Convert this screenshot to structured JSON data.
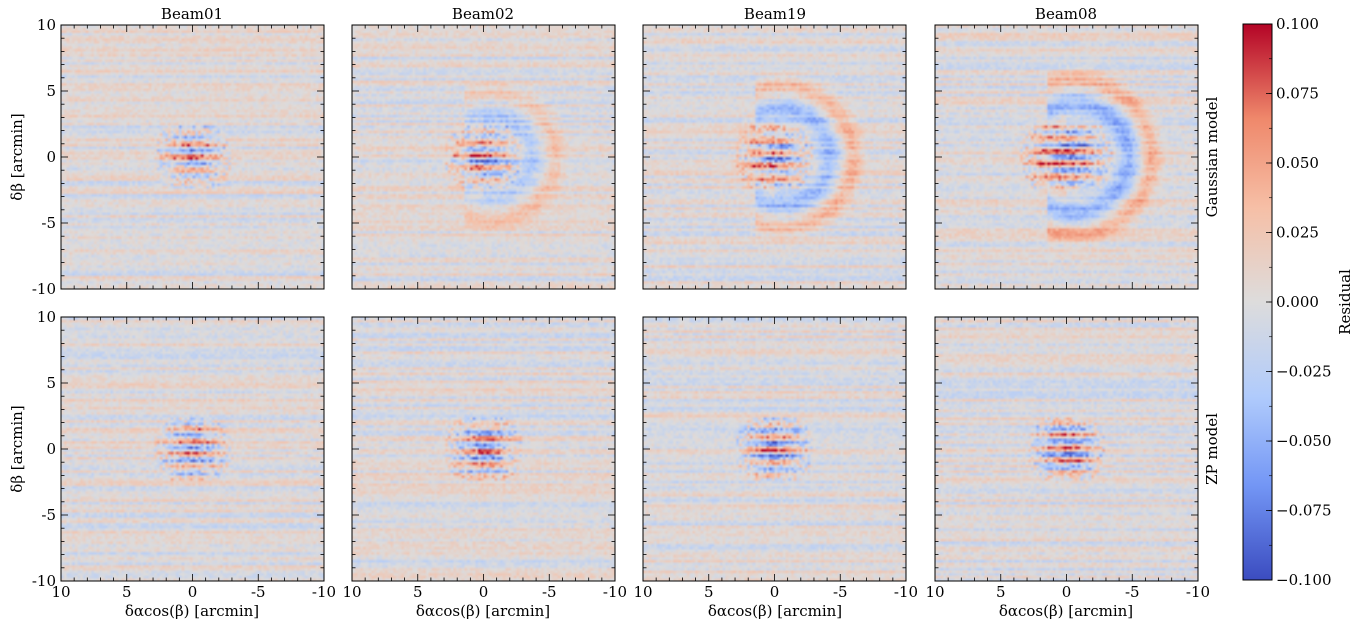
{
  "chart_data": {
    "type": "heatmap",
    "columns": [
      "Beam01",
      "Beam02",
      "Beam19",
      "Beam08"
    ],
    "rows": [
      "Gaussian model",
      "ZP model"
    ],
    "xlabel": "δαcos(β) [arcmin]",
    "ylabel": "δβ [arcmin]",
    "x_range": [
      10,
      -10
    ],
    "y_range": [
      -10,
      10
    ],
    "x_ticks": [
      10,
      5,
      0,
      -5,
      -10
    ],
    "x_tick_labels": [
      "10",
      "5",
      "0",
      "-5",
      "-10"
    ],
    "y_ticks": [
      -10,
      -5,
      0,
      5,
      10
    ],
    "y_tick_labels": [
      "-10",
      "-5",
      "0",
      "5",
      "10"
    ],
    "colorbar": {
      "label": "Residual",
      "range": [
        -0.1,
        0.1
      ],
      "ticks": [
        0.1,
        0.075,
        0.05,
        0.025,
        0.0,
        -0.025,
        -0.05,
        -0.075,
        -0.1
      ],
      "tick_labels": [
        "0.100",
        "0.075",
        "0.050",
        "0.025",
        "0.000",
        "−0.025",
        "−0.050",
        "−0.075",
        "−0.100"
      ],
      "colormap": "coolwarm",
      "colors": [
        "#3b4cc0",
        "#7396f5",
        "#b0cbfc",
        "#dddcdc",
        "#f6bfa6",
        "#ef886b",
        "#b40426"
      ]
    },
    "panels": [
      {
        "row": "Gaussian model",
        "column": "Beam01",
        "core_radius": 3.0,
        "ring_radius": 0,
        "ring_amplitude": 0.0,
        "stripe_amplitude": 0.09
      },
      {
        "row": "Gaussian model",
        "column": "Beam02",
        "core_radius": 3.0,
        "ring_radius": 4.0,
        "ring_amplitude": 0.03,
        "stripe_amplitude": 0.09
      },
      {
        "row": "Gaussian model",
        "column": "Beam19",
        "core_radius": 3.0,
        "ring_radius": 4.5,
        "ring_amplitude": 0.045,
        "stripe_amplitude": 0.1
      },
      {
        "row": "Gaussian model",
        "column": "Beam08",
        "core_radius": 3.5,
        "ring_radius": 5.0,
        "ring_amplitude": 0.05,
        "stripe_amplitude": 0.1
      },
      {
        "row": "ZP model",
        "column": "Beam01",
        "core_radius": 3.0,
        "ring_radius": 0,
        "ring_amplitude": 0.0,
        "stripe_amplitude": 0.09
      },
      {
        "row": "ZP model",
        "column": "Beam02",
        "core_radius": 3.0,
        "ring_radius": 0,
        "ring_amplitude": 0.0,
        "stripe_amplitude": 0.09
      },
      {
        "row": "ZP model",
        "column": "Beam19",
        "core_radius": 3.0,
        "ring_radius": 0,
        "ring_amplitude": 0.0,
        "stripe_amplitude": 0.1
      },
      {
        "row": "ZP model",
        "column": "Beam08",
        "core_radius": 3.0,
        "ring_radius": 0,
        "ring_amplitude": 0.0,
        "stripe_amplitude": 0.1
      }
    ]
  }
}
